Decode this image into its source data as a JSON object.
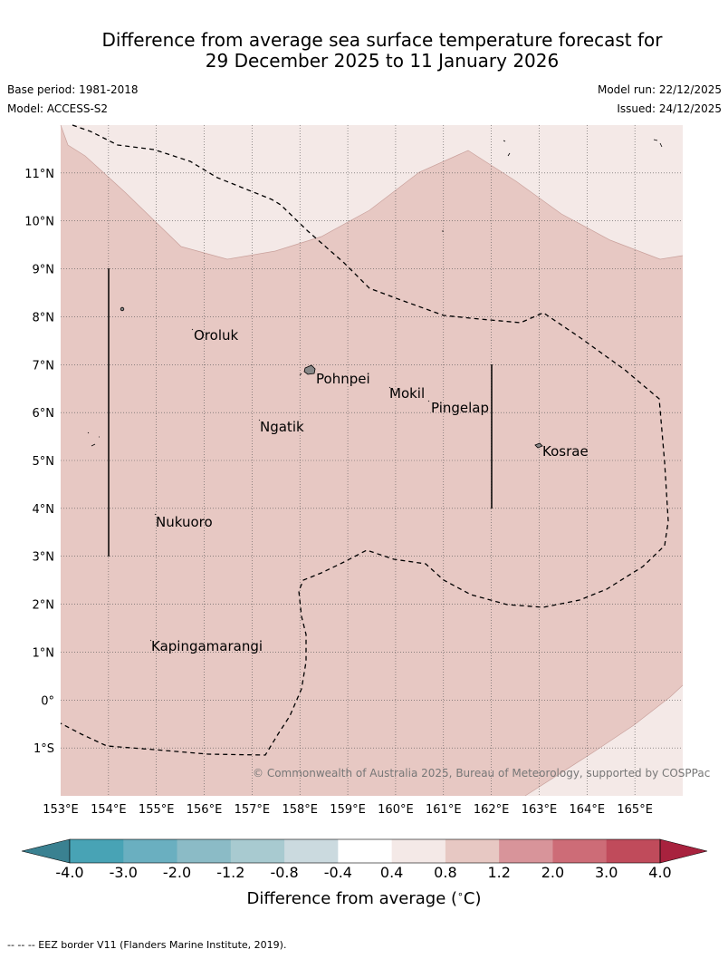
{
  "title": {
    "line1": "Difference from average sea surface temperature forecast for",
    "line2": "29 December 2025 to 11 January 2026"
  },
  "meta": {
    "base_period": "Base period: 1981-2018",
    "model": "Model: ACCESS-S2",
    "model_run": "Model run: 22/12/2025",
    "issued": "Issued: 24/12/2025"
  },
  "map": {
    "lon_range": [
      153,
      166
    ],
    "lat_range": [
      -2,
      12
    ],
    "lon_ticks": [
      "153°E",
      "154°E",
      "155°E",
      "156°E",
      "157°E",
      "158°E",
      "159°E",
      "160°E",
      "161°E",
      "162°E",
      "163°E",
      "164°E",
      "165°E"
    ],
    "lat_ticks": [
      "11°N",
      "10°N",
      "9°N",
      "8°N",
      "7°N",
      "6°N",
      "5°N",
      "4°N",
      "3°N",
      "2°N",
      "1°N",
      "0°",
      "1°S"
    ],
    "places": [
      "Oroluk",
      "Pohnpei",
      "Mokil",
      "Pingelap",
      "Ngatik",
      "Kosrae",
      "Nukuoro",
      "Kapingamarangi"
    ],
    "copyright": "© Commonwealth of Australia 2025, Bureau of Meteorology, supported by COSPPac",
    "fill_main": "#e7c8c3",
    "fill_light": "#f4e9e7"
  },
  "colorbar": {
    "ticks": [
      "-4.0",
      "-3.0",
      "-2.0",
      "-1.2",
      "-0.8",
      "-0.4",
      "0.4",
      "0.8",
      "1.2",
      "2.0",
      "3.0",
      "4.0"
    ],
    "colors": [
      "#48a3b5",
      "#6aafc0",
      "#8bbbc6",
      "#a8cad0",
      "#cbdadf",
      "#ffffff",
      "#f4e9e7",
      "#e7c8c3",
      "#d8949a",
      "#cd6c77",
      "#c04b5b"
    ],
    "under_color": "#3a8191",
    "over_color": "#a8223e",
    "title": "Difference from average ($^\\circ$C)"
  },
  "footer": "--  --  -- EEZ border V11 (Flanders Marine Institute, 2019)."
}
